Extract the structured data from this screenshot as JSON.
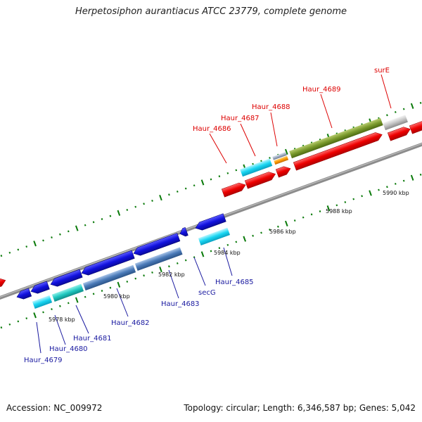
{
  "title": "Herpetosiphon aurantiacus ATCC 23779, complete genome",
  "footer": {
    "accession": "Accession: NC_009972",
    "stats": "Topology: circular; Length: 6,346,587 bp; Genes: 5,042"
  },
  "colors": {
    "forward_strand": "#ee0000",
    "reverse_strand": "#1111dd",
    "label_top": "#dd0000",
    "label_bottom": "#1a1aa0",
    "backbone": "#8c8c8c",
    "tick": "#0a7a0a"
  },
  "scale_labels": [
    "5978 kbp",
    "5980 kbp",
    "5982 kbp",
    "5984 kbp",
    "5986 kbp",
    "5988 kbp",
    "5990 kbp"
  ],
  "genes_top": [
    "Haur_4686",
    "Haur_4687",
    "Haur_4688",
    "Haur_4689",
    "surE"
  ],
  "genes_bottom": [
    "Haur_4679",
    "Haur_4680",
    "Haur_4681",
    "Haur_4682",
    "Haur_4683",
    "secG",
    "Haur_4685"
  ]
}
